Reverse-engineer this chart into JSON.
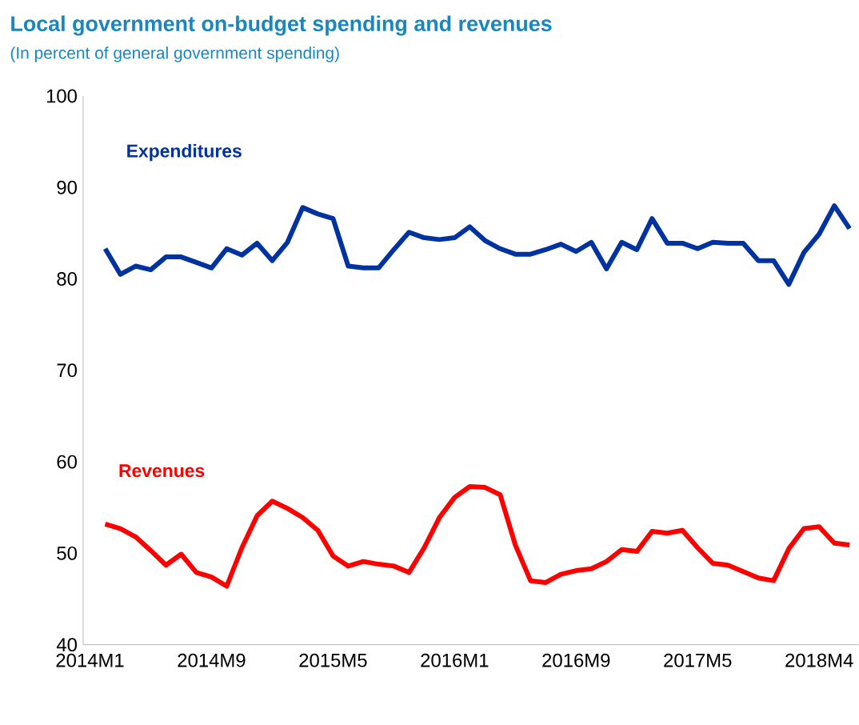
{
  "chart_data": {
    "type": "line",
    "title": "Local government on-budget spending and revenues",
    "subtitle": "(In percent of general government spending)",
    "categories": [
      "2014M1",
      null,
      null,
      null,
      null,
      null,
      null,
      null,
      "2014M9",
      null,
      null,
      null,
      null,
      null,
      null,
      null,
      "2015M5",
      null,
      null,
      null,
      null,
      null,
      null,
      null,
      "2016M1",
      null,
      null,
      null,
      null,
      null,
      null,
      null,
      "2016M9",
      null,
      null,
      null,
      null,
      null,
      null,
      null,
      "2017M5",
      null,
      null,
      null,
      null,
      null,
      null,
      null,
      "2018M4",
      null,
      null
    ],
    "series": [
      {
        "name": "Expenditures",
        "color": "#0033a0",
        "values": [
          null,
          83.3,
          80.5,
          81.4,
          81.0,
          82.4,
          82.4,
          81.8,
          81.2,
          83.3,
          82.6,
          83.9,
          82.0,
          84.0,
          87.8,
          87.1,
          86.6,
          81.4,
          81.2,
          81.2,
          83.2,
          85.1,
          84.5,
          84.3,
          84.5,
          85.7,
          84.2,
          83.3,
          82.7,
          82.7,
          83.2,
          83.8,
          83.0,
          84.0,
          81.1,
          84.0,
          83.2,
          86.6,
          83.9,
          83.9,
          83.3,
          84.0,
          83.9,
          83.9,
          82.0,
          82.0,
          79.4,
          82.9,
          84.9,
          88.0,
          85.5
        ]
      },
      {
        "name": "Revenues",
        "color": "#ff0000",
        "values": [
          null,
          53.2,
          52.7,
          51.8,
          50.3,
          48.7,
          49.9,
          47.9,
          47.4,
          46.4,
          50.6,
          54.1,
          55.7,
          54.9,
          53.9,
          52.5,
          49.7,
          48.6,
          49.1,
          48.8,
          48.6,
          47.9,
          50.6,
          53.9,
          56.1,
          57.3,
          57.2,
          56.4,
          50.9,
          47.0,
          46.8,
          47.7,
          48.1,
          48.3,
          49.1,
          50.4,
          50.2,
          52.4,
          52.2,
          52.5,
          50.6,
          48.9,
          48.7,
          48.0,
          47.3,
          47.0,
          50.5,
          52.7,
          52.9,
          51.1,
          50.9
        ]
      }
    ],
    "ylim": [
      40,
      100
    ],
    "yticks": [
      40,
      50,
      60,
      70,
      80,
      90,
      100
    ],
    "marker": "none",
    "line_style": "solid"
  }
}
